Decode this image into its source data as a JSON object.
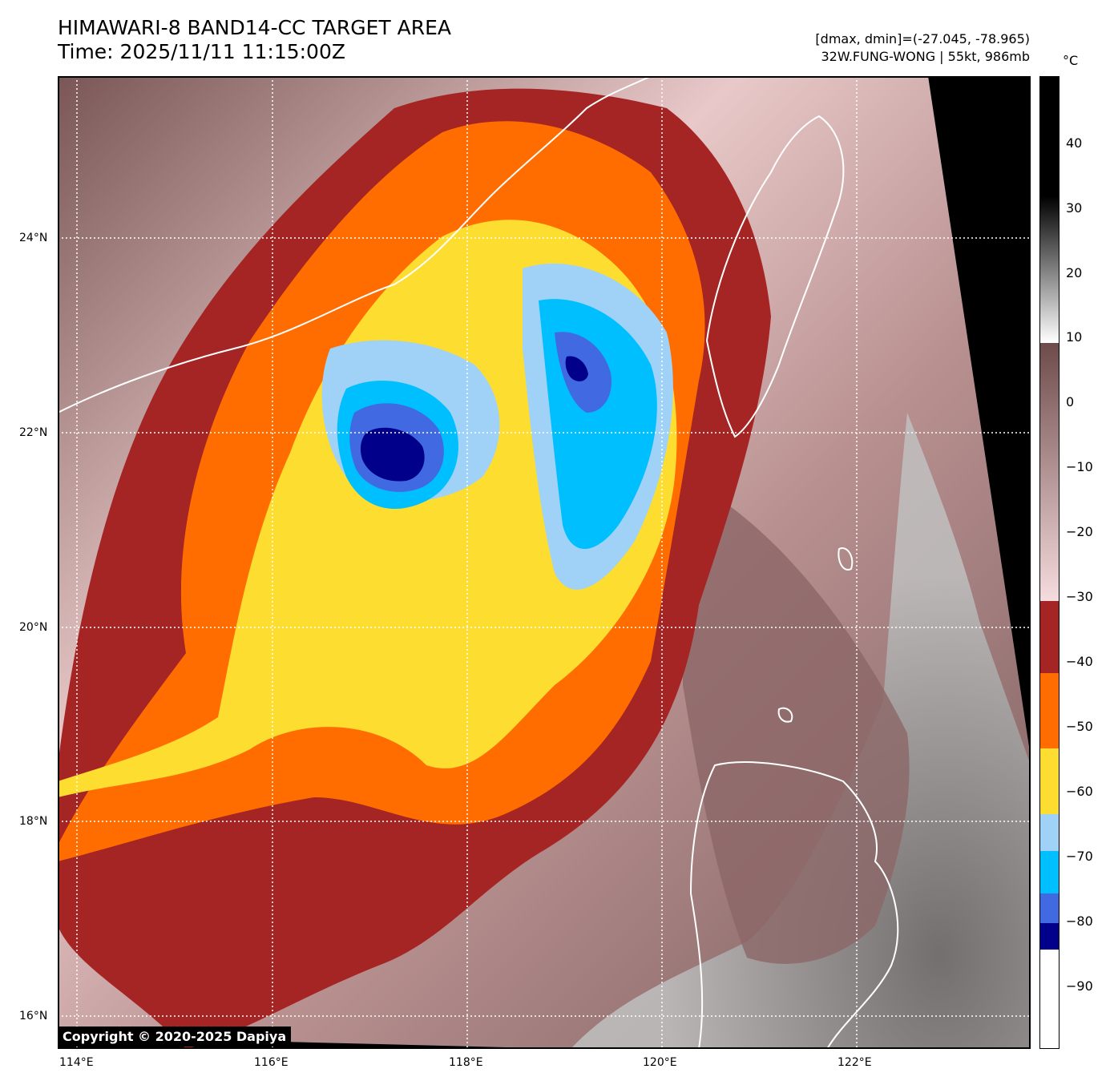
{
  "header": {
    "title_line1": "HIMAWARI-8 BAND14-CC TARGET AREA",
    "title_line2": "Time: 2025/11/11 11:15:00Z",
    "range_text": "[dmax, dmin]=(-27.045, -78.965)",
    "storm_text": "32W.FUNG-WONG | 55kt, 986mb"
  },
  "map": {
    "lat_labels": [
      "24°N",
      "22°N",
      "20°N",
      "18°N",
      "16°N"
    ],
    "lon_labels": [
      "114°E",
      "116°E",
      "118°E",
      "120°E",
      "122°E"
    ]
  },
  "colorbar": {
    "unit": "°C",
    "ticks": [
      "40",
      "30",
      "20",
      "10",
      "0",
      "−10",
      "−20",
      "−30",
      "−40",
      "−50",
      "−60",
      "−70",
      "−80",
      "−90"
    ],
    "colors": {
      "white": "#ffffff",
      "navy": "#00008b",
      "royal_blue": "#4169e1",
      "deep_sky": "#00bfff",
      "light_sky": "#a0d2f8",
      "yellow": "#fcdd30",
      "orange": "#ff6d00",
      "dark_red": "#a52424",
      "pink": "#f5d5d8",
      "brown": "#6e4b4b"
    }
  },
  "footer": {
    "copyright": "Copyright © 2020-2025 Dapiya"
  }
}
